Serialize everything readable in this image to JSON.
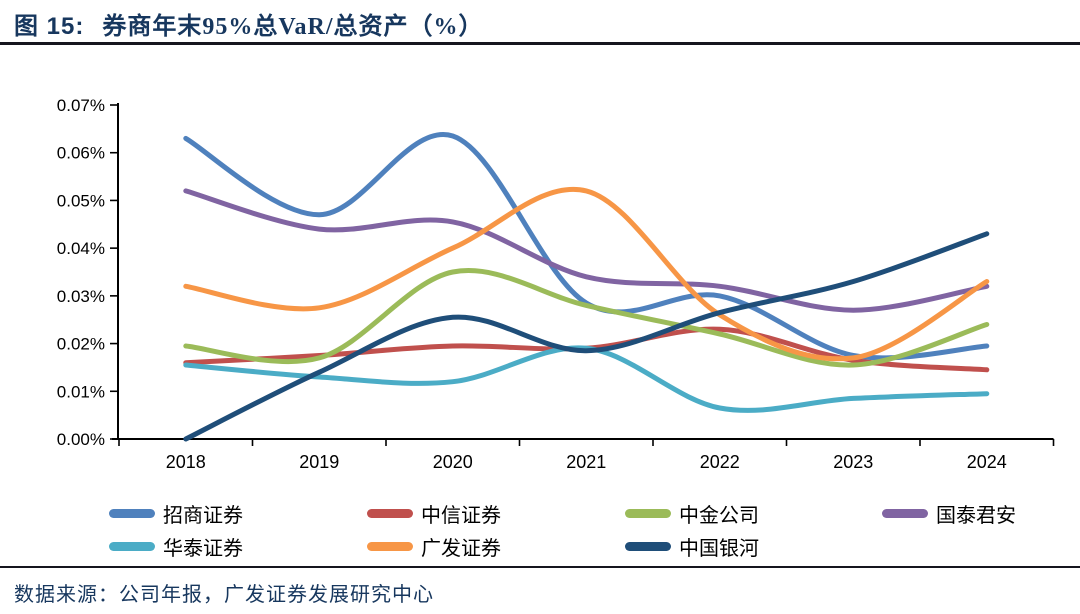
{
  "header": {
    "title_prefix": "图  15:",
    "title_text": "券商年末95%总VaR/总资产（%）"
  },
  "footer": {
    "source_text": "数据来源：公司年报，广发证券发展研究中心"
  },
  "colors": {
    "title_color": "#17375E",
    "divider_color": "#15151e",
    "axis_color": "#000000"
  },
  "chart_data": {
    "type": "line",
    "title": "券商年末95%总VaR/总资产（%）",
    "x": [
      2018,
      2019,
      2020,
      2021,
      2022,
      2023,
      2024
    ],
    "x_tick_labels": [
      "2018",
      "2019",
      "2020",
      "2021",
      "2022",
      "2023",
      "2024"
    ],
    "y_unit": "%",
    "ylim": [
      0,
      0.07
    ],
    "y_tick_step": 0.01,
    "y_tick_labels": [
      "0.00%",
      "0.01%",
      "0.02%",
      "0.03%",
      "0.04%",
      "0.05%",
      "0.06%",
      "0.07%"
    ],
    "grid": false,
    "line_smoothing": true,
    "legend_position": "bottom",
    "legend_columns": 4,
    "series": [
      {
        "name": "招商证券",
        "color": "#4F81BD",
        "values": [
          0.063,
          0.047,
          0.0635,
          0.0285,
          0.03,
          0.0175,
          0.0195
        ]
      },
      {
        "name": "中信证券",
        "color": "#C0504D",
        "values": [
          0.016,
          0.0175,
          0.0195,
          0.019,
          0.023,
          0.0165,
          0.0145
        ]
      },
      {
        "name": "中金公司",
        "color": "#9BBB59",
        "values": [
          0.0195,
          0.017,
          0.035,
          0.028,
          0.022,
          0.0155,
          0.024
        ]
      },
      {
        "name": "国泰君安",
        "color": "#8064A2",
        "values": [
          0.052,
          0.044,
          0.0455,
          0.034,
          0.032,
          0.027,
          0.032
        ]
      },
      {
        "name": "华泰证券",
        "color": "#4BACC6",
        "values": [
          0.0155,
          0.013,
          0.012,
          0.019,
          0.0065,
          0.0085,
          0.0095
        ]
      },
      {
        "name": "广发证券",
        "color": "#F79646",
        "values": [
          0.032,
          0.0275,
          0.04,
          0.052,
          0.026,
          0.017,
          0.033
        ]
      },
      {
        "name": "中国银河",
        "color": "#1F4E79",
        "values": [
          0.0,
          0.014,
          0.0255,
          0.0185,
          0.0265,
          0.033,
          0.043
        ]
      }
    ]
  }
}
